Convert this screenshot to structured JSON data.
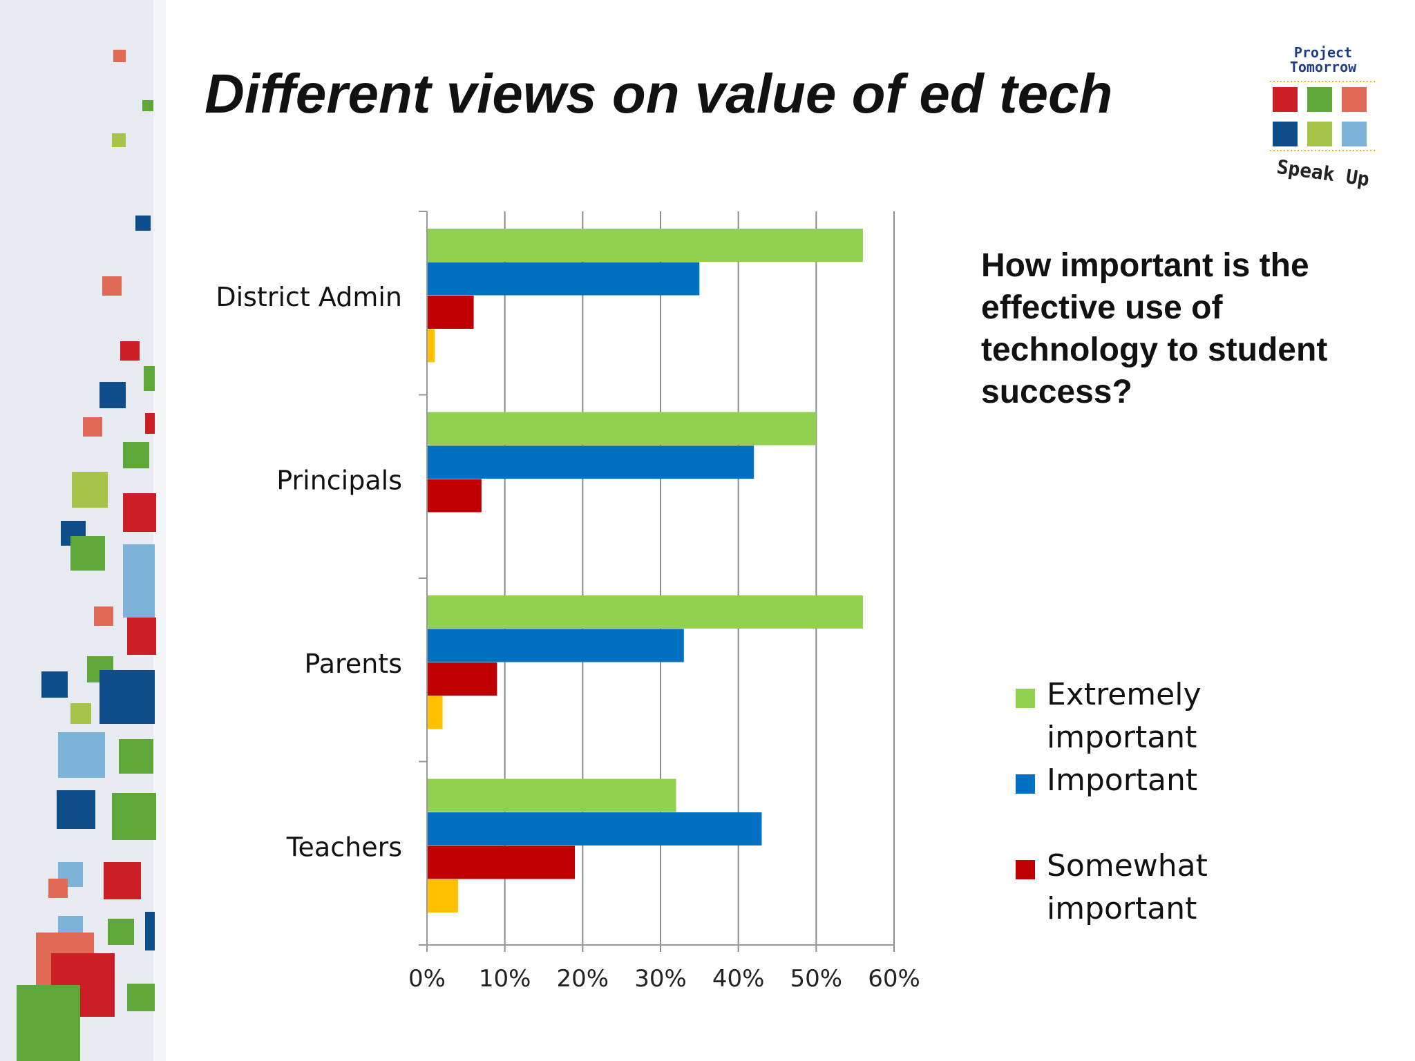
{
  "slide": {
    "title": "Different views on value of ed tech",
    "question": "How important is the effective use of technology to student success?"
  },
  "logo": {
    "line1": "Project",
    "line2": "Tomorrow",
    "tagline": "Speak Up",
    "colors": [
      "#cc1f25",
      "#5ea83a",
      "#e06a55",
      "#0f4c8a",
      "#a6c34a",
      "#7eb3d9"
    ]
  },
  "colors": {
    "extremely": "#92d050",
    "important": "#0070c0",
    "somewhat": "#c00000",
    "other": "#ffc000",
    "axis": "#999999",
    "grid": "#8c8c8c"
  },
  "chart_data": {
    "type": "bar",
    "orientation": "horizontal",
    "categories": [
      "District Admin",
      "Principals",
      "Parents",
      "Teachers"
    ],
    "series": [
      {
        "name": "Extremely important",
        "color": "#92d050",
        "values": [
          56,
          50,
          56,
          32
        ]
      },
      {
        "name": "Important",
        "color": "#0070c0",
        "values": [
          35,
          42,
          33,
          43
        ]
      },
      {
        "name": "Somewhat important",
        "color": "#c00000",
        "values": [
          6,
          7,
          9,
          19
        ]
      },
      {
        "color": "#ffc000",
        "values": [
          1,
          0,
          2,
          4
        ]
      }
    ],
    "xlim": [
      0,
      60
    ],
    "xticks": [
      "0%",
      "10%",
      "20%",
      "30%",
      "40%",
      "50%",
      "60%"
    ],
    "grid": true,
    "legend": "right"
  }
}
